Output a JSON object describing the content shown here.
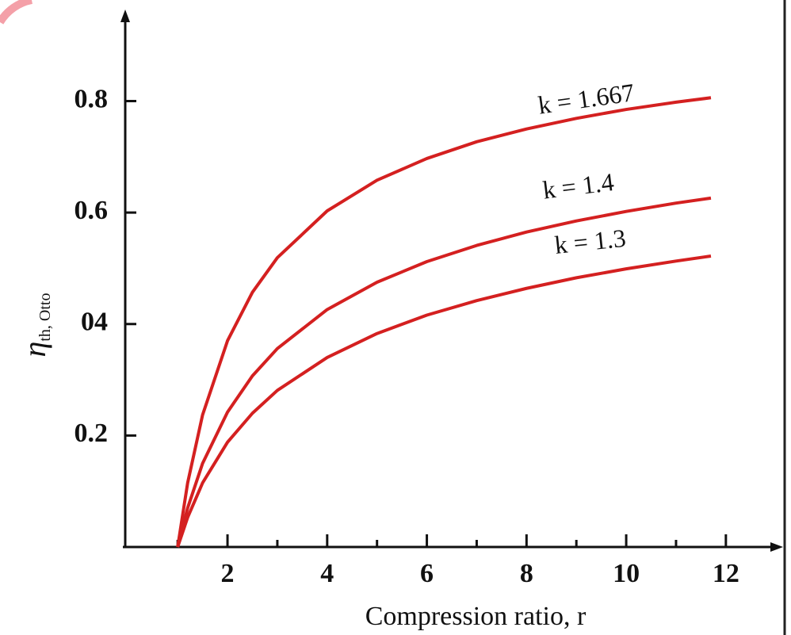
{
  "chart_data": {
    "type": "line",
    "xlabel": "Compression ratio, r",
    "ylabel": "η",
    "ylabel_subscript": "th, Otto",
    "x": [
      1,
      1.2,
      1.5,
      2,
      2.5,
      3,
      4,
      5,
      6,
      7,
      8,
      9,
      10,
      11,
      11.7
    ],
    "series": [
      {
        "name": "k = 1.667",
        "color": "#d42020",
        "values": [
          0,
          0.115,
          0.237,
          0.37,
          0.457,
          0.519,
          0.603,
          0.658,
          0.697,
          0.727,
          0.75,
          0.769,
          0.785,
          0.798,
          0.806
        ]
      },
      {
        "name": "k = 1.4",
        "color": "#d42020",
        "values": [
          0,
          0.07,
          0.15,
          0.242,
          0.307,
          0.356,
          0.426,
          0.475,
          0.512,
          0.541,
          0.565,
          0.585,
          0.602,
          0.617,
          0.626
        ]
      },
      {
        "name": "k = 1.3",
        "color": "#d42020",
        "values": [
          0,
          0.053,
          0.115,
          0.188,
          0.24,
          0.281,
          0.34,
          0.383,
          0.416,
          0.442,
          0.464,
          0.483,
          0.499,
          0.513,
          0.522
        ]
      }
    ],
    "xlim": [
      -0.1,
      13.1
    ],
    "ylim": [
      0,
      0.96
    ],
    "xticks": [
      2,
      4,
      6,
      8,
      10,
      12
    ],
    "xminorticks": [
      1,
      3,
      5,
      7,
      9,
      11
    ],
    "yticks": [
      {
        "value": 0.2,
        "label": "0.2"
      },
      {
        "value": 0.4,
        "label": "04"
      },
      0.6,
      0.8
    ],
    "grid": false
  }
}
